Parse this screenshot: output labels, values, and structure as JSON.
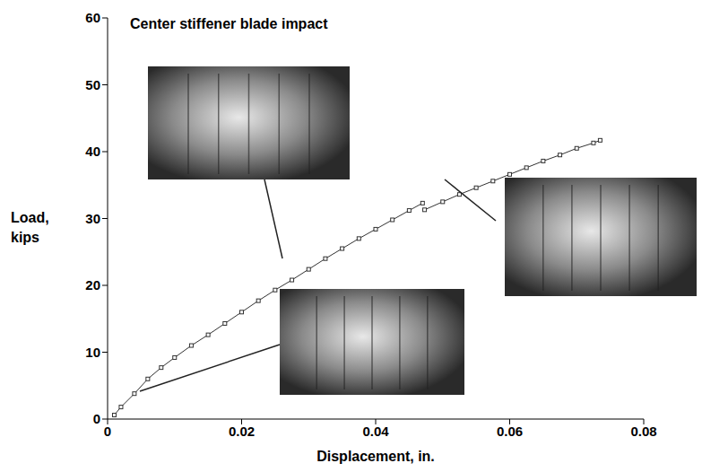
{
  "chart_data": {
    "type": "line",
    "title": "Center stiffener blade impact",
    "x_label": "Displacement, in.",
    "y_label": "Load, kips",
    "xlim": [
      0,
      0.08
    ],
    "xticks": [
      0,
      0.02,
      0.04,
      0.06,
      0.08
    ],
    "ylim": [
      0,
      60
    ],
    "yticks": [
      0,
      10,
      20,
      30,
      40,
      50,
      60
    ],
    "grid": false,
    "series": [
      {
        "name": "Load",
        "color": "#333333",
        "marker": "square",
        "x": [
          0.001,
          0.002,
          0.004,
          0.006,
          0.008,
          0.01,
          0.0125,
          0.015,
          0.0175,
          0.02,
          0.0225,
          0.025,
          0.0275,
          0.03,
          0.0325,
          0.035,
          0.0375,
          0.04,
          0.0425,
          0.045,
          0.047,
          0.0471,
          0.0473,
          0.05,
          0.0525,
          0.055,
          0.0575,
          0.06,
          0.0625,
          0.065,
          0.0675,
          0.07,
          0.0725,
          0.0735
        ],
        "values": [
          0.6,
          1.8,
          3.8,
          6.0,
          7.7,
          9.2,
          11.0,
          12.6,
          14.3,
          16.0,
          17.7,
          19.3,
          20.8,
          22.4,
          24.0,
          25.5,
          27.0,
          28.4,
          29.8,
          31.2,
          32.3,
          null,
          31.3,
          32.5,
          33.6,
          34.6,
          35.6,
          36.6,
          37.6,
          38.6,
          39.5,
          40.5,
          41.3,
          41.7
        ]
      }
    ]
  }
}
